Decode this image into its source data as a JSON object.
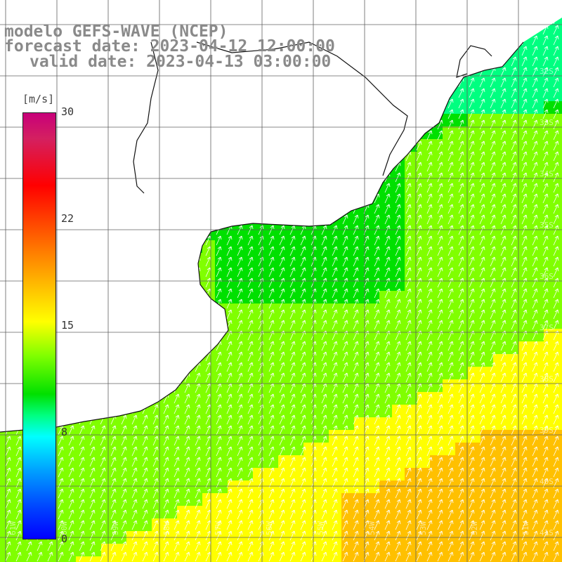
{
  "header": {
    "line1": "modelo GEFS-WAVE (NCEP)",
    "line2": "forecast date: 2023-04-12 12:00:00",
    "line3": "valid date: 2023-04-13 03:00:00"
  },
  "colorbar": {
    "units": "[m/s]",
    "ticks": [
      "30",
      "22",
      "15",
      "8",
      "0"
    ],
    "tick_values": [
      30,
      22,
      15,
      8,
      0
    ],
    "colors": [
      "#0000ff",
      "#00a0ff",
      "#00ffff",
      "#00ff80",
      "#00e000",
      "#80ff00",
      "#ffff00",
      "#ffc000",
      "#ff8000",
      "#ff0000",
      "#c8007a"
    ]
  },
  "map": {
    "variable": "wind speed",
    "lat_labels": [
      "32S",
      "33S",
      "34S",
      "35S",
      "36S",
      "37S",
      "38S",
      "39S",
      "40S",
      "41S"
    ],
    "lon_labels": [
      "61W",
      "60W",
      "59W",
      "58W",
      "57W",
      "56W",
      "55W",
      "54W",
      "53W",
      "52W",
      "51W"
    ],
    "wind_direction": "from south-west"
  }
}
